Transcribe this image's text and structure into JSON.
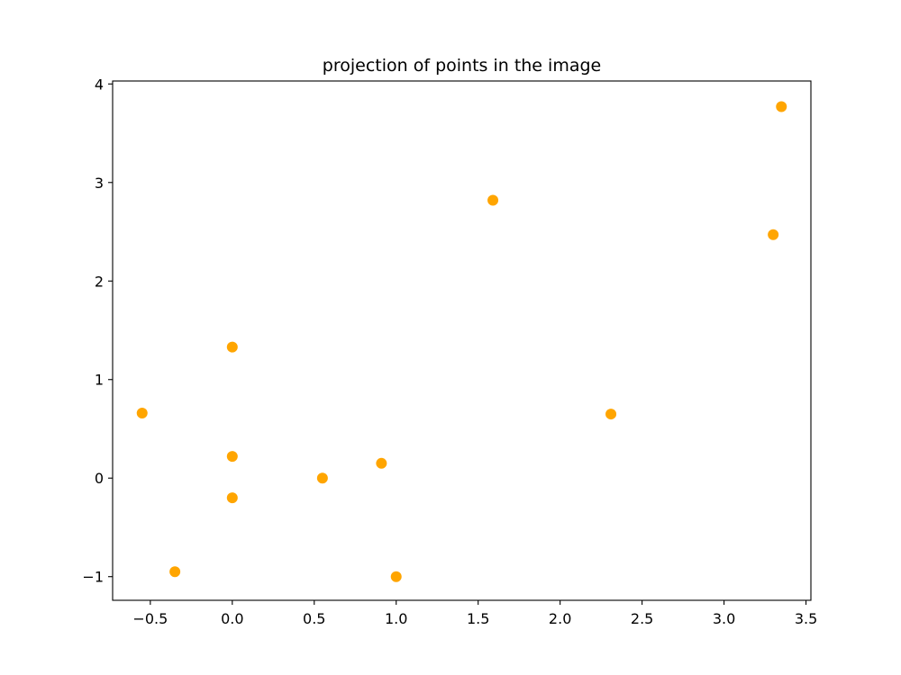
{
  "chart_data": {
    "type": "scatter",
    "title": "projection of points in the image",
    "xlabel": "",
    "ylabel": "",
    "xlim": [
      -0.73,
      3.53
    ],
    "ylim": [
      -1.24,
      4.03
    ],
    "x_ticks": [
      -0.5,
      0.0,
      0.5,
      1.0,
      1.5,
      2.0,
      2.5,
      3.0,
      3.5
    ],
    "x_tick_labels": [
      "−0.5",
      "0.0",
      "0.5",
      "1.0",
      "1.5",
      "2.0",
      "2.5",
      "3.0",
      "3.5"
    ],
    "y_ticks": [
      -1,
      0,
      1,
      2,
      3,
      4
    ],
    "y_tick_labels": [
      "−1",
      "0",
      "1",
      "2",
      "3",
      "4"
    ],
    "grid": false,
    "marker_color": "#ffa500",
    "points": [
      {
        "x": -0.55,
        "y": 0.66
      },
      {
        "x": -0.35,
        "y": -0.95
      },
      {
        "x": 0.0,
        "y": 1.33
      },
      {
        "x": 0.0,
        "y": 0.22
      },
      {
        "x": 0.0,
        "y": -0.2
      },
      {
        "x": 0.55,
        "y": 0.0
      },
      {
        "x": 0.91,
        "y": 0.15
      },
      {
        "x": 1.0,
        "y": -1.0
      },
      {
        "x": 1.59,
        "y": 2.82
      },
      {
        "x": 2.31,
        "y": 0.65
      },
      {
        "x": 3.3,
        "y": 2.47
      },
      {
        "x": 3.35,
        "y": 3.77
      }
    ]
  }
}
